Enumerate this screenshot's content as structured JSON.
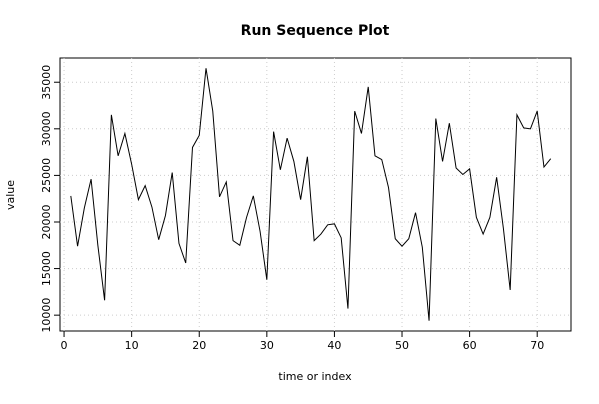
{
  "chart_data": {
    "type": "line",
    "title": "Run Sequence Plot",
    "x_label": "time or index",
    "y_label": "value",
    "x": [
      1,
      2,
      3,
      4,
      5,
      6,
      7,
      8,
      9,
      10,
      11,
      12,
      13,
      14,
      15,
      16,
      17,
      18,
      19,
      20,
      21,
      22,
      23,
      24,
      25,
      26,
      27,
      28,
      29,
      30,
      31,
      32,
      33,
      34,
      35,
      36,
      37,
      38,
      39,
      40,
      41,
      42,
      43,
      44,
      45,
      46,
      47,
      48,
      49,
      50,
      51,
      52,
      53,
      54,
      55,
      56,
      57,
      58,
      59,
      60,
      61,
      62,
      63,
      64,
      65,
      66,
      67,
      68,
      69,
      70,
      71,
      72
    ],
    "series": [
      {
        "color": "#000000",
        "values": [
          22800,
          17400,
          21500,
          24600,
          17500,
          11600,
          31500,
          27100,
          29500,
          26200,
          22400,
          23900,
          21600,
          18100,
          20700,
          25300,
          17700,
          15600,
          28000,
          29300,
          36500,
          31900,
          22700,
          24300,
          18000,
          17500,
          20500,
          22800,
          19000,
          13800,
          29700,
          25600,
          29000,
          26500,
          22400,
          27000,
          18000,
          18700,
          19700,
          19800,
          18300,
          10700,
          31900,
          29500,
          34500,
          27100,
          26700,
          23700,
          18200,
          17400,
          18200,
          21000,
          17300,
          9400,
          31100,
          26500,
          30600,
          25800,
          25100,
          25700,
          20500,
          18700,
          20500,
          24800,
          19300,
          12700,
          31500,
          30100,
          30000,
          31900,
          25900,
          26800
        ]
      }
    ],
    "xlim": [
      -0.6,
      75
    ],
    "ylim": [
      8300,
      37600
    ],
    "xticks": [
      0,
      10,
      20,
      30,
      40,
      50,
      60,
      70
    ],
    "yticks": [
      10000,
      15000,
      20000,
      25000,
      30000,
      35000
    ],
    "grid": true
  }
}
